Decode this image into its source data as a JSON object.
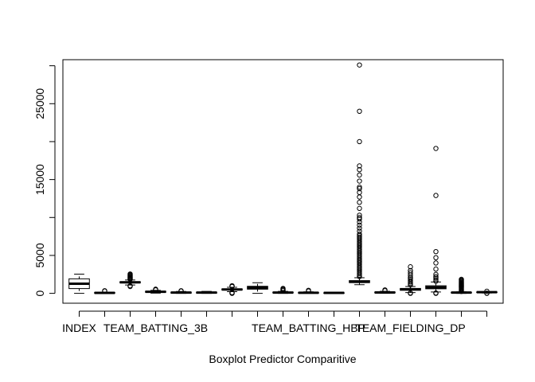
{
  "chart_data": {
    "type": "boxplot",
    "xlabel": "Boxplot Predictor Comparitive",
    "ylim": [
      -1300,
      30800
    ],
    "yticks": [
      0,
      5000,
      15000,
      25000
    ],
    "ytick_labels": [
      "0",
      "5000",
      "15000",
      "25000"
    ],
    "xtick_labels": [
      "INDEX",
      "TEAM_BATTING_3B",
      "TEAM_BATTING_HBP",
      "TEAM_FIELDING_DP"
    ],
    "xtick_positions": [
      1,
      4,
      10,
      14
    ],
    "boxes": [
      {
        "pos": 1,
        "min": 1,
        "q1": 630,
        "median": 1270,
        "q3": 1915,
        "max": 2535,
        "outliers": []
      },
      {
        "pos": 2,
        "min": 0,
        "q1": 35,
        "median": 70,
        "q3": 100,
        "max": 150,
        "outliers": [
          300,
          350
        ]
      },
      {
        "pos": 3,
        "min": 1100,
        "q1": 1380,
        "median": 1455,
        "q3": 1535,
        "max": 1760,
        "outliers": [
          900,
          1000,
          1850,
          1950,
          2050,
          2150,
          2250,
          2350,
          2450,
          2550
        ]
      },
      {
        "pos": 4,
        "min": 30,
        "q1": 150,
        "median": 210,
        "q3": 270,
        "max": 400,
        "outliers": [
          450,
          500,
          550
        ]
      },
      {
        "pos": 5,
        "min": 0,
        "q1": 40,
        "median": 100,
        "q3": 150,
        "max": 250,
        "outliers": [
          300,
          350
        ]
      },
      {
        "pos": 6,
        "min": 0,
        "q1": 40,
        "median": 100,
        "q3": 150,
        "max": 260,
        "outliers": []
      },
      {
        "pos": 7,
        "min": 220,
        "q1": 450,
        "median": 510,
        "q3": 580,
        "max": 800,
        "outliers": [
          0,
          50,
          100,
          900,
          1000
        ]
      },
      {
        "pos": 8,
        "min": 0,
        "q1": 550,
        "median": 750,
        "q3": 930,
        "max": 1400,
        "outliers": []
      },
      {
        "pos": 9,
        "min": 0,
        "q1": 70,
        "median": 100,
        "q3": 150,
        "max": 260,
        "outliers": [
          350,
          450,
          550,
          650
        ]
      },
      {
        "pos": 10,
        "min": 30,
        "q1": 60,
        "median": 80,
        "q3": 100,
        "max": 200,
        "outliers": [
          300,
          400
        ]
      },
      {
        "pos": 11,
        "min": 30,
        "q1": 50,
        "median": 60,
        "q3": 70,
        "max": 100,
        "outliers": []
      },
      {
        "pos": 12,
        "min": 1140,
        "q1": 1420,
        "median": 1520,
        "q3": 1680,
        "max": 2060,
        "outliers": [
          2200,
          2400,
          2600,
          2800,
          3000,
          3200,
          3400,
          3600,
          3800,
          4000,
          4200,
          4400,
          4600,
          4800,
          5000,
          5200,
          5400,
          5600,
          5800,
          6000,
          6200,
          6400,
          6600,
          6800,
          7000,
          7200,
          7400,
          7600,
          7800,
          8200,
          8600,
          9000,
          9400,
          9800,
          10000,
          10300,
          11200,
          12000,
          12700,
          13300,
          13800,
          14000,
          14800,
          15600,
          16300,
          16800,
          20000,
          24000,
          30100
        ]
      },
      {
        "pos": 13,
        "min": 0,
        "q1": 80,
        "median": 120,
        "q3": 160,
        "max": 270,
        "outliers": [
          350,
          450
        ]
      },
      {
        "pos": 14,
        "min": 100,
        "q1": 400,
        "median": 530,
        "q3": 650,
        "max": 900,
        "outliers": [
          0,
          50,
          1100,
          1300,
          1500,
          1700,
          1900,
          2100,
          2400,
          2700,
          3000,
          3500
        ]
      },
      {
        "pos": 15,
        "min": 180,
        "q1": 600,
        "median": 780,
        "q3": 1000,
        "max": 1500,
        "outliers": [
          0,
          50,
          1600,
          1800,
          2000,
          2200,
          2500,
          3200,
          4000,
          4700,
          5500,
          12900,
          19100
        ]
      },
      {
        "pos": 16,
        "min": 0,
        "q1": 70,
        "median": 100,
        "q3": 130,
        "max": 200,
        "outliers": [
          250,
          350,
          450,
          550,
          650,
          750,
          850,
          950,
          1050,
          1150,
          1250,
          1350,
          1450,
          1550,
          1650,
          1750,
          1850
        ]
      },
      {
        "pos": 17,
        "min": 50,
        "q1": 130,
        "median": 150,
        "q3": 170,
        "max": 220,
        "outliers": [
          0,
          30,
          280
        ]
      }
    ]
  }
}
